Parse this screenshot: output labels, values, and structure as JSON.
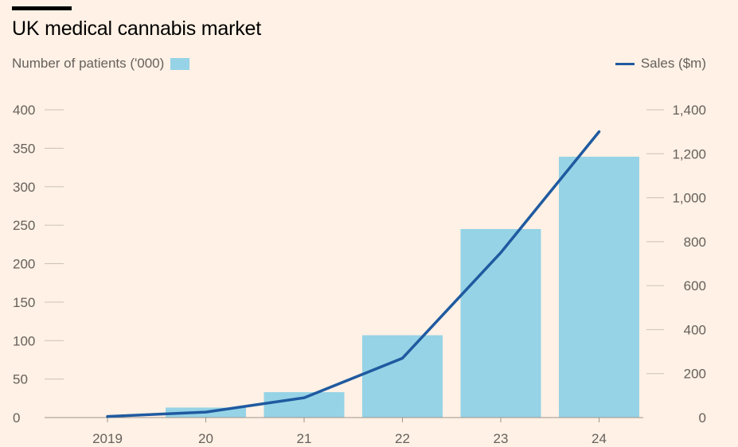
{
  "title": "UK medical cannabis market",
  "legend": {
    "bars_label": "Number of patients ('000)",
    "line_label": "Sales ($m)"
  },
  "colors": {
    "background": "#fff1e5",
    "bars": "#96d3e6",
    "line": "#1f5aa0",
    "grid": "#ccc1b7",
    "text": "#66605c"
  },
  "chart_data": {
    "type": "bar",
    "categories": [
      "2019",
      "20",
      "21",
      "22",
      "23",
      "24"
    ],
    "series": [
      {
        "name": "Number of patients ('000)",
        "type": "bar",
        "axis": "left",
        "values": [
          0,
          13,
          33,
          107,
          245,
          339
        ]
      },
      {
        "name": "Sales ($m)",
        "type": "line",
        "axis": "right",
        "values": [
          5,
          25,
          90,
          270,
          750,
          1300
        ]
      }
    ],
    "y_left": {
      "ticks": [
        0,
        50,
        100,
        150,
        200,
        250,
        300,
        350,
        400
      ],
      "tick_labels": [
        "0",
        "50",
        "100",
        "150",
        "200",
        "250",
        "300",
        "350",
        "400"
      ],
      "ylim": [
        0,
        400
      ]
    },
    "y_right": {
      "ticks": [
        0,
        200,
        400,
        600,
        800,
        1000,
        1200,
        1400
      ],
      "tick_labels": [
        "0",
        "200",
        "400",
        "600",
        "800",
        "1,000",
        "1,200",
        "1,400"
      ],
      "ylim": [
        0,
        1400
      ]
    },
    "grid": false,
    "legend_position": "top"
  }
}
